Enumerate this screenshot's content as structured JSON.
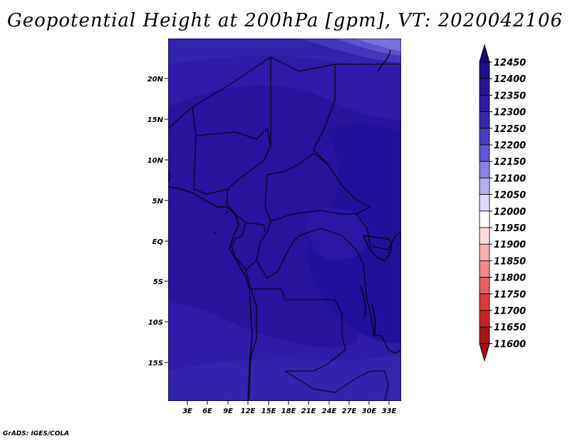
{
  "title": "Geopotential Height at 200hPa [gpm], VT: 2020042106",
  "credit": "GrADS: IGES/COLA",
  "map": {
    "lat_labels": [
      "20N",
      "15N",
      "10N",
      "5N",
      "EQ",
      "5S",
      "10S",
      "15S"
    ],
    "lon_labels": [
      "3E",
      "6E",
      "9E",
      "12E",
      "15E",
      "18E",
      "21E",
      "24E",
      "27E",
      "30E",
      "33E"
    ]
  },
  "colorbar": {
    "levels": [
      "12450",
      "12400",
      "12350",
      "12300",
      "12250",
      "12200",
      "12150",
      "12100",
      "12050",
      "12000",
      "11950",
      "11900",
      "11850",
      "11800",
      "11750",
      "11700",
      "11650",
      "11600"
    ],
    "colors": [
      "#1e0f8c",
      "#27139c",
      "#2e1aa6",
      "#3624b0",
      "#4a3dc0",
      "#6255d2",
      "#8a80e2",
      "#b4aff0",
      "#dcdaf8",
      "#ffffff",
      "#fbdada",
      "#f5b0b0",
      "#ec8a8a",
      "#e46060",
      "#da3a3a",
      "#c82323",
      "#aa1616"
    ],
    "top_color": "#1a0a80",
    "bottom_color": "#a01010"
  }
}
